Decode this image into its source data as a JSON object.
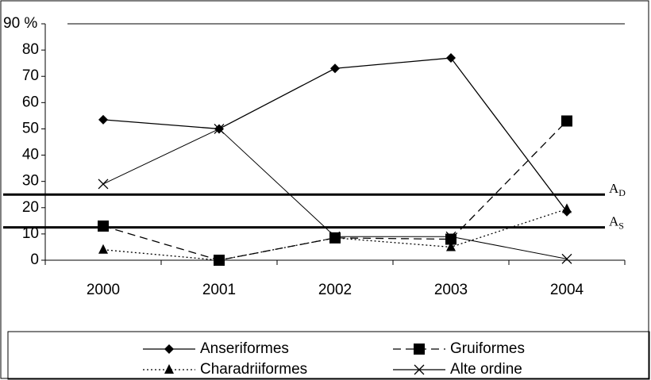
{
  "chart_data": {
    "type": "line",
    "categories": [
      "2000",
      "2001",
      "2002",
      "2003",
      "2004"
    ],
    "series": [
      {
        "name": "Anseriformes",
        "color": "#000000",
        "dash": "solid",
        "marker": "diamond",
        "values": [
          53.5,
          50,
          73,
          77,
          18.5
        ]
      },
      {
        "name": "Gruiformes",
        "color": "#000000",
        "dash": "dashed",
        "marker": "square",
        "values": [
          13,
          0,
          8.5,
          8,
          53
        ]
      },
      {
        "name": "Charadriiformes",
        "color": "#000000",
        "dash": "dotted",
        "marker": "triangle",
        "values": [
          4,
          0,
          8.5,
          5,
          19.5
        ]
      },
      {
        "name": "Alte ordine",
        "color": "#000000",
        "dash": "solid",
        "marker": "x",
        "values": [
          29,
          50,
          9,
          9,
          0.5
        ]
      }
    ],
    "reference_lines": [
      {
        "name": "A",
        "sub": "D",
        "value": 25
      },
      {
        "name": "A",
        "sub": "S",
        "value": 12.5
      }
    ],
    "ylim": [
      0,
      90
    ],
    "yticks": [
      0,
      10,
      20,
      30,
      40,
      50,
      60,
      70,
      80,
      {
        "value": 90,
        "label": "90 %"
      }
    ],
    "grid": false,
    "legend": "bottom"
  }
}
